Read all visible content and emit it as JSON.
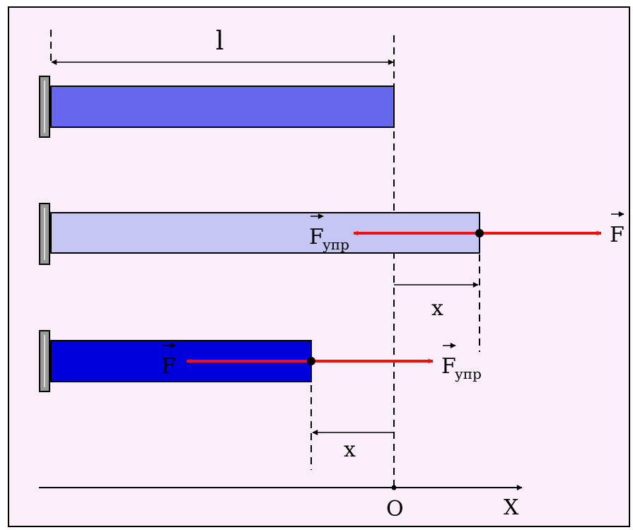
{
  "labels": {
    "length": "l",
    "force_f": "F",
    "force_elastic": "F",
    "force_elastic_sub": "упр",
    "displacement": "x",
    "origin": "O",
    "axis": "X"
  },
  "colors": {
    "background": "#fbeefb",
    "border": "#000000",
    "rod_rest": "#6666ee",
    "rod_stretched": "#c6c6f5",
    "rod_compressed": "#0000dd",
    "force_arrow": "#ee1111",
    "wall": "#999999"
  }
}
